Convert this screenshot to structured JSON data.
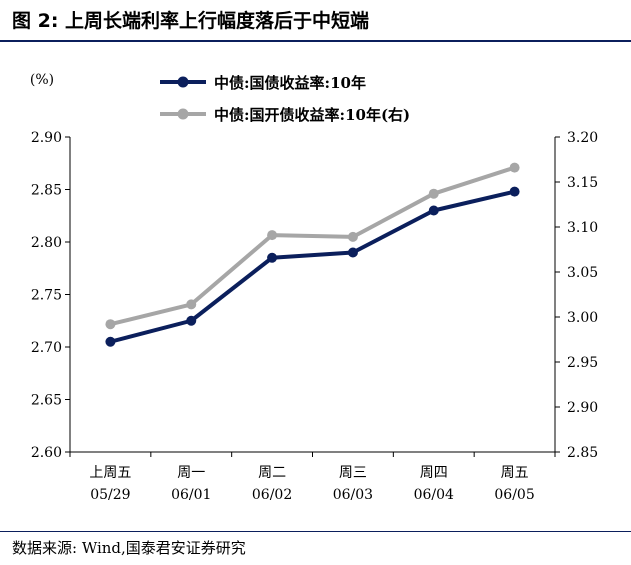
{
  "header": {
    "title": "图 2:  上周长端利率上行幅度落后于中短端"
  },
  "footer": {
    "source": "数据来源:  Wind,国泰君安证券研究"
  },
  "chart_data": {
    "type": "line",
    "title": "",
    "ylabel": "(%)",
    "categories": [
      "上周五",
      "周一",
      "周二",
      "周三",
      "周四",
      "周五"
    ],
    "categories_sub": [
      "05/29",
      "06/01",
      "06/02",
      "06/03",
      "06/04",
      "06/05"
    ],
    "ylim": [
      2.6,
      2.9
    ],
    "y2lim": [
      2.85,
      3.2
    ],
    "yticks": [
      "2.60",
      "2.65",
      "2.70",
      "2.75",
      "2.80",
      "2.85",
      "2.90"
    ],
    "y2ticks": [
      "2.85",
      "2.90",
      "2.95",
      "3.00",
      "3.05",
      "3.10",
      "3.15",
      "3.20"
    ],
    "legend_position": "top-left",
    "grid": false,
    "series": [
      {
        "name": "中债:国债收益率:10年",
        "axis": "left",
        "color": "#0b1f5c",
        "values": [
          2.705,
          2.725,
          2.785,
          2.79,
          2.83,
          2.848
        ]
      },
      {
        "name": "中债:国开债收益率:10年(右)",
        "axis": "right",
        "color": "#a6a6a6",
        "values": [
          2.992,
          3.014,
          3.091,
          3.089,
          3.137,
          3.166
        ]
      }
    ]
  }
}
